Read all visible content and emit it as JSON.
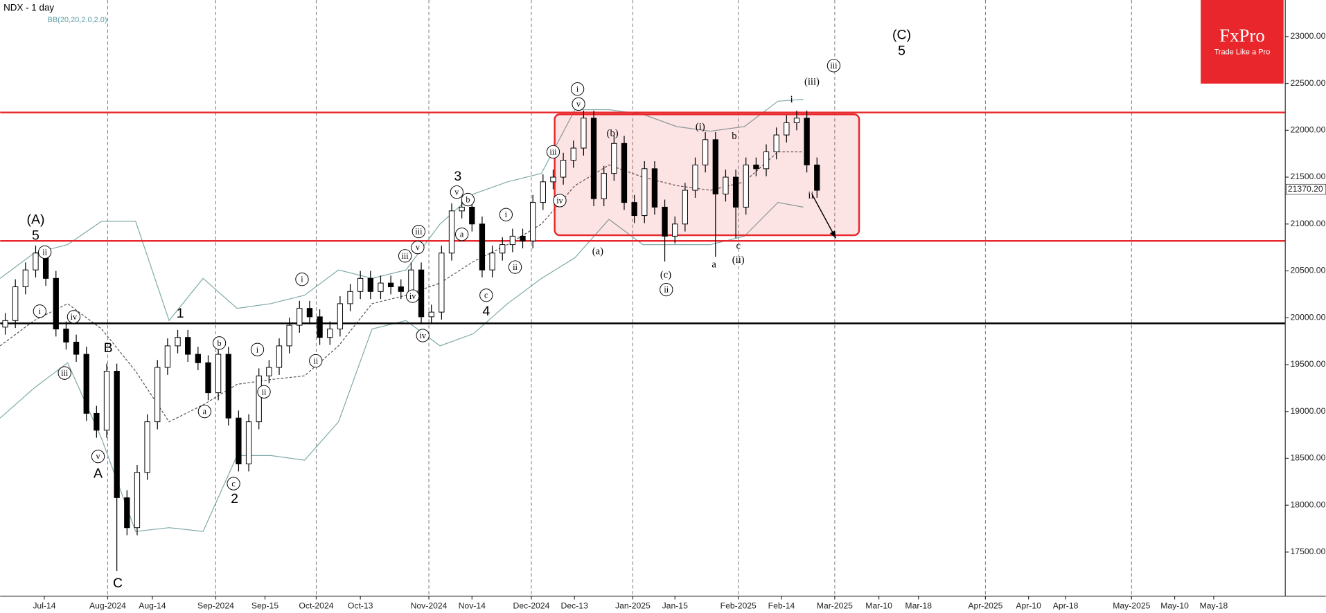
{
  "chart_data": {
    "type": "candlestick",
    "title": "NDX - 1 day",
    "subtitle": "BB(20,20,2.0,2.0)",
    "brand": {
      "name": "FxPro",
      "tagline": "Trade Like a Pro",
      "color": "#e8262b"
    },
    "xlim": [
      0,
      253.3
    ],
    "ylim": [
      17030,
      23390
    ],
    "yticks": [
      {
        "value": 17500,
        "label": "17500.00"
      },
      {
        "value": 18000,
        "label": "18000.00"
      },
      {
        "value": 18500,
        "label": "18500.00"
      },
      {
        "value": 19000,
        "label": "19000.00"
      },
      {
        "value": 19500,
        "label": "19500.00"
      },
      {
        "value": 20000,
        "label": "20000.00"
      },
      {
        "value": 20500,
        "label": "20500.00"
      },
      {
        "value": 21000,
        "label": "21000.00"
      },
      {
        "value": 21500,
        "label": "21500.00"
      },
      {
        "value": 22000,
        "label": "22000.00"
      },
      {
        "value": 22500,
        "label": "22500.00"
      },
      {
        "value": 23000,
        "label": "23000.00"
      }
    ],
    "xticks": [
      {
        "value": 8.7,
        "label": "Jul-14"
      },
      {
        "value": 21.2,
        "label": "Aug-2024"
      },
      {
        "value": 30,
        "label": "Aug-14"
      },
      {
        "value": 42.5,
        "label": "Sep-2024"
      },
      {
        "value": 52.2,
        "label": "Sep-15"
      },
      {
        "value": 62.3,
        "label": "Oct-2024"
      },
      {
        "value": 71,
        "label": "Oct-13"
      },
      {
        "value": 84.5,
        "label": "Nov-2024"
      },
      {
        "value": 93,
        "label": "Nov-14"
      },
      {
        "value": 104.7,
        "label": "Dec-2024"
      },
      {
        "value": 113.2,
        "label": "Dec-13"
      },
      {
        "value": 124.7,
        "label": "Jan-2025"
      },
      {
        "value": 133,
        "label": "Jan-15"
      },
      {
        "value": 145.5,
        "label": "Feb-2025"
      },
      {
        "value": 154,
        "label": "Feb-14"
      },
      {
        "value": 164.5,
        "label": "Mar-2025"
      },
      {
        "value": 173.2,
        "label": "Mar-10"
      },
      {
        "value": 181,
        "label": "Mar-18"
      },
      {
        "value": 194.2,
        "label": "Apr-2025"
      },
      {
        "value": 202.7,
        "label": "Apr-10"
      },
      {
        "value": 210,
        "label": "Apr-18"
      },
      {
        "value": 223,
        "label": "May-2025"
      },
      {
        "value": 231.5,
        "label": "May-10"
      },
      {
        "value": 239.2,
        "label": "May-18"
      }
    ],
    "x": [
      1,
      3,
      5,
      7,
      9,
      11,
      13,
      15,
      17,
      19,
      21,
      23,
      25,
      27,
      29,
      31,
      33,
      35,
      37,
      39,
      41,
      43,
      45,
      47,
      49,
      51,
      53,
      55,
      57,
      59,
      61,
      63,
      65,
      67,
      69,
      71,
      73,
      75,
      77,
      79,
      81,
      83,
      85,
      87,
      89,
      91,
      93,
      95,
      97,
      99,
      101,
      103,
      105,
      107,
      109,
      111,
      113,
      115,
      117,
      119,
      121,
      123,
      125,
      127,
      129,
      131,
      133,
      135,
      137,
      139,
      141,
      143,
      145,
      147,
      149,
      151,
      153,
      155,
      157,
      159,
      161
    ],
    "open": [
      19900,
      19970,
      20330,
      20510,
      20690,
      20420,
      19880,
      19740,
      19610,
      18980,
      18800,
      19430,
      18080,
      17760,
      18350,
      18890,
      19470,
      19700,
      19790,
      19610,
      19520,
      19200,
      19610,
      18930,
      18440,
      18890,
      19380,
      19470,
      19700,
      19920,
      20100,
      20010,
      19790,
      19880,
      20150,
      20280,
      20420,
      20280,
      20370,
      20330,
      20280,
      20510,
      20010,
      20060,
      20690,
      21140,
      21180,
      21000,
      20510,
      20690,
      20780,
      20870,
      20820,
      21230,
      21450,
      21500,
      21680,
      21810,
      22130,
      21270,
      21540,
      21860,
      21230,
      21090,
      21590,
      21180,
      20870,
      21000,
      21360,
      21630,
      21900,
      21320,
      21500,
      21180,
      21630,
      21590,
      21770,
      21950,
      22080,
      22130,
      21630
    ],
    "high": [
      20050,
      20410,
      20590,
      20770,
      20770,
      20500,
      19960,
      19820,
      19690,
      19060,
      19510,
      19510,
      18160,
      18430,
      18970,
      19550,
      19780,
      19870,
      19870,
      19690,
      19600,
      19690,
      19690,
      19010,
      18970,
      19460,
      19550,
      19780,
      20000,
      20180,
      20180,
      20090,
      19960,
      20230,
      20360,
      20500,
      20500,
      20450,
      20450,
      20410,
      20590,
      20590,
      20140,
      20770,
      21220,
      21260,
      21260,
      21080,
      20770,
      20860,
      20950,
      20950,
      21310,
      21530,
      21580,
      21760,
      21890,
      22210,
      22210,
      21620,
      21940,
      21940,
      21310,
      21670,
      21670,
      21260,
      21080,
      21440,
      21710,
      21980,
      21980,
      21580,
      21580,
      21710,
      21710,
      21850,
      22030,
      22160,
      22210,
      22210,
      21710
    ],
    "low": [
      19820,
      19890,
      20250,
      20430,
      20340,
      19800,
      19660,
      19530,
      18900,
      18720,
      18720,
      17300,
      17680,
      17680,
      18270,
      18810,
      19390,
      19620,
      19530,
      19440,
      19120,
      19120,
      18850,
      18360,
      18360,
      18810,
      19300,
      19390,
      19620,
      19840,
      19930,
      19710,
      19710,
      19800,
      20070,
      20200,
      20200,
      20200,
      20250,
      20200,
      20200,
      19930,
      19930,
      19980,
      20610,
      21060,
      20920,
      20430,
      20430,
      20610,
      20700,
      20740,
      20740,
      21150,
      21370,
      21420,
      21600,
      21730,
      21190,
      21190,
      21460,
      21150,
      21010,
      21010,
      21100,
      20600,
      20790,
      20920,
      21280,
      21550,
      20650,
      21240,
      20850,
      21100,
      21510,
      21510,
      21690,
      21870,
      22000,
      21550,
      21280
    ],
    "close": [
      19970,
      20330,
      20510,
      20690,
      20420,
      19880,
      19740,
      19610,
      18980,
      18800,
      19430,
      18080,
      17760,
      18350,
      18890,
      19470,
      19700,
      19790,
      19610,
      19520,
      19200,
      19610,
      18930,
      18440,
      18890,
      19380,
      19470,
      19700,
      19920,
      20100,
      20010,
      19790,
      19880,
      20150,
      20280,
      20420,
      20280,
      20370,
      20330,
      20280,
      20510,
      20010,
      20060,
      20690,
      21140,
      21180,
      21000,
      20510,
      20690,
      20780,
      20870,
      20820,
      21230,
      21450,
      21500,
      21680,
      21810,
      22130,
      21270,
      21540,
      21860,
      21230,
      21090,
      21590,
      21180,
      20870,
      21000,
      21360,
      21630,
      21900,
      21320,
      21500,
      21180,
      21630,
      21590,
      21770,
      21950,
      22080,
      22130,
      21630,
      21360
    ],
    "up_color": "#ffffff",
    "down_color": "#000000",
    "bollinger": {
      "color": "#7fa9a9",
      "x": [
        0,
        6.7,
        13.3,
        20,
        26.7,
        33.3,
        40,
        46.7,
        53.3,
        60,
        66.7,
        73.3,
        80,
        86.7,
        93.3,
        100,
        106.7,
        113.3,
        120,
        126.7,
        133.3,
        140,
        146.7,
        153.3,
        158.3
      ],
      "upper": [
        20420,
        20690,
        20780,
        21030,
        21030,
        19970,
        20420,
        20100,
        20150,
        20240,
        20510,
        20420,
        20510,
        21000,
        21320,
        21450,
        21540,
        22220,
        22220,
        22170,
        22040,
        21990,
        22040,
        22310,
        22330
      ],
      "middle": [
        19700,
        19970,
        20150,
        19880,
        19430,
        18890,
        19070,
        19290,
        19340,
        19380,
        19700,
        20150,
        20240,
        20370,
        20600,
        20780,
        21000,
        21410,
        21630,
        21500,
        21410,
        21360,
        21450,
        21770,
        21770
      ],
      "lower": [
        18930,
        19250,
        19520,
        18710,
        17720,
        17760,
        17720,
        18530,
        18530,
        18480,
        18890,
        19880,
        19970,
        19700,
        19830,
        20150,
        20420,
        20640,
        21050,
        20780,
        20780,
        20780,
        20870,
        21230,
        21180
      ]
    },
    "levels": [
      {
        "value": 22190,
        "color": "#e8262b"
      },
      {
        "value": 20820,
        "color": "#e8262b"
      },
      {
        "value": 19940,
        "color": "#000000"
      }
    ],
    "zone": {
      "x": [
        109.3,
        169.3
      ],
      "y": [
        20880,
        22170
      ],
      "color": "#e8262b"
    },
    "arrow": {
      "x": [
        160,
        164.7
      ],
      "y": [
        21320,
        20850
      ]
    },
    "last_price": {
      "value": 21370.2,
      "label": "21370.20"
    },
    "annotations": [
      {
        "text": "(A)",
        "x": 7,
        "y": 21050,
        "circled": false
      },
      {
        "text": "5",
        "x": 7,
        "y": 20880,
        "circled": false
      },
      {
        "text": "ii",
        "x": 8.8,
        "y": 20700,
        "circled": true
      },
      {
        "text": "i",
        "x": 7.8,
        "y": 20070,
        "circled": true
      },
      {
        "text": "iv",
        "x": 14.5,
        "y": 20010,
        "circled": true
      },
      {
        "text": "iii",
        "x": 12.7,
        "y": 19410,
        "circled": true
      },
      {
        "text": "B",
        "x": 21.3,
        "y": 19680,
        "circled": false
      },
      {
        "text": "v",
        "x": 19.3,
        "y": 18520,
        "circled": true
      },
      {
        "text": "A",
        "x": 19.3,
        "y": 18340,
        "circled": false
      },
      {
        "text": "C",
        "x": 23.2,
        "y": 17170,
        "circled": false
      },
      {
        "text": "1",
        "x": 35.5,
        "y": 20050,
        "circled": false
      },
      {
        "text": "b",
        "x": 43.2,
        "y": 19730,
        "circled": true
      },
      {
        "text": "a",
        "x": 40.3,
        "y": 19000,
        "circled": true
      },
      {
        "text": "c",
        "x": 46,
        "y": 18230,
        "circled": true
      },
      {
        "text": "2",
        "x": 46.2,
        "y": 18070,
        "circled": false
      },
      {
        "text": "i",
        "x": 50.7,
        "y": 19660,
        "circled": true
      },
      {
        "text": "ii",
        "x": 52,
        "y": 19210,
        "circled": true
      },
      {
        "text": "i",
        "x": 59.5,
        "y": 20410,
        "circled": true
      },
      {
        "text": "ii",
        "x": 62.2,
        "y": 19540,
        "circled": true
      },
      {
        "text": "iii",
        "x": 82.5,
        "y": 20920,
        "circled": true
      },
      {
        "text": "v",
        "x": 82.3,
        "y": 20750,
        "circled": true
      },
      {
        "text": "iii",
        "x": 79.8,
        "y": 20660,
        "circled": true
      },
      {
        "text": "iv",
        "x": 81.3,
        "y": 20230,
        "circled": true
      },
      {
        "text": "iv",
        "x": 83.3,
        "y": 19810,
        "circled": true
      },
      {
        "text": "3",
        "x": 90.2,
        "y": 21510,
        "circled": false
      },
      {
        "text": "v",
        "x": 90,
        "y": 21340,
        "circled": true
      },
      {
        "text": "b",
        "x": 92.2,
        "y": 21260,
        "circled": true
      },
      {
        "text": "a",
        "x": 91,
        "y": 20890,
        "circled": true
      },
      {
        "text": "c",
        "x": 95.8,
        "y": 20240,
        "circled": true
      },
      {
        "text": "4",
        "x": 95.8,
        "y": 20070,
        "circled": false
      },
      {
        "text": "i",
        "x": 99.7,
        "y": 21100,
        "circled": true
      },
      {
        "text": "ii",
        "x": 101.5,
        "y": 20540,
        "circled": true
      },
      {
        "text": "i",
        "x": 113.8,
        "y": 22440,
        "circled": true
      },
      {
        "text": "v",
        "x": 114,
        "y": 22280,
        "circled": true
      },
      {
        "text": "iii",
        "x": 109,
        "y": 21770,
        "circled": true
      },
      {
        "text": "iv",
        "x": 110.3,
        "y": 21250,
        "circled": true
      },
      {
        "text": "(a)",
        "x": 117.8,
        "y": 20710,
        "circled": false
      },
      {
        "text": "(b)",
        "x": 120.7,
        "y": 21970,
        "circled": false
      },
      {
        "text": "(c)",
        "x": 131.2,
        "y": 20460,
        "circled": false
      },
      {
        "text": "ii",
        "x": 131.3,
        "y": 20300,
        "circled": true
      },
      {
        "text": "(i)",
        "x": 138,
        "y": 22040,
        "circled": false
      },
      {
        "text": "b",
        "x": 144.7,
        "y": 21940,
        "circled": false
      },
      {
        "text": "a",
        "x": 140.7,
        "y": 20570,
        "circled": false
      },
      {
        "text": "c",
        "x": 145.5,
        "y": 20770,
        "circled": false
      },
      {
        "text": "(ii)",
        "x": 145.5,
        "y": 20620,
        "circled": false
      },
      {
        "text": "i",
        "x": 156,
        "y": 22330,
        "circled": false
      },
      {
        "text": "ii",
        "x": 159.8,
        "y": 21310,
        "circled": false
      },
      {
        "text": "(iii)",
        "x": 160,
        "y": 22520,
        "circled": false
      },
      {
        "text": "iii",
        "x": 164.3,
        "y": 22690,
        "circled": true
      },
      {
        "text": "(C)",
        "x": 177.7,
        "y": 23020,
        "circled": false
      },
      {
        "text": "5",
        "x": 177.7,
        "y": 22850,
        "circled": false
      }
    ]
  }
}
